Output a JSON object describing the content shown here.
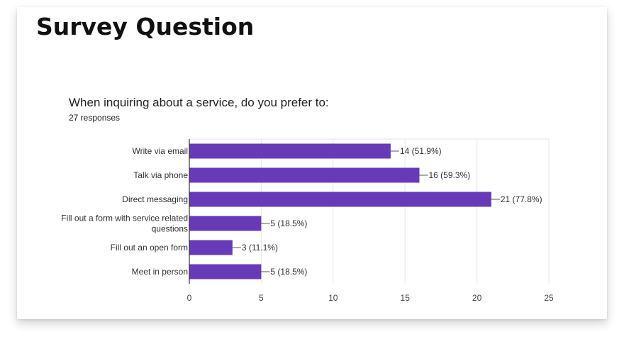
{
  "slide": {
    "title": "Survey Question"
  },
  "question": {
    "title": "When inquiring about a service, do you prefer to:",
    "responses": "27 responses"
  },
  "colors": {
    "bar": "#673ab7",
    "grid": "#e6e6e6",
    "axis": "#333333"
  },
  "chart_data": {
    "type": "bar",
    "orientation": "horizontal",
    "title": "When inquiring about a service, do you prefer to:",
    "subtitle": "27 responses",
    "categories": [
      [
        "Write via email"
      ],
      [
        "Talk via phone"
      ],
      [
        "Direct messaging"
      ],
      [
        "Fill out a form with service related",
        "questions"
      ],
      [
        "Fill out an open form"
      ],
      [
        "Meet in person"
      ]
    ],
    "values": [
      14,
      16,
      21,
      5,
      3,
      5
    ],
    "value_labels": [
      "14 (51.9%)",
      "16 (59.3%)",
      "21 (77.8%)",
      "5 (18.5%)",
      "3 (11.1%)",
      "5 (18.5%)"
    ],
    "xlim": [
      0,
      25
    ],
    "xticks": [
      0,
      5,
      10,
      15,
      20,
      25
    ],
    "grid": true,
    "xlabel": "",
    "ylabel": ""
  }
}
